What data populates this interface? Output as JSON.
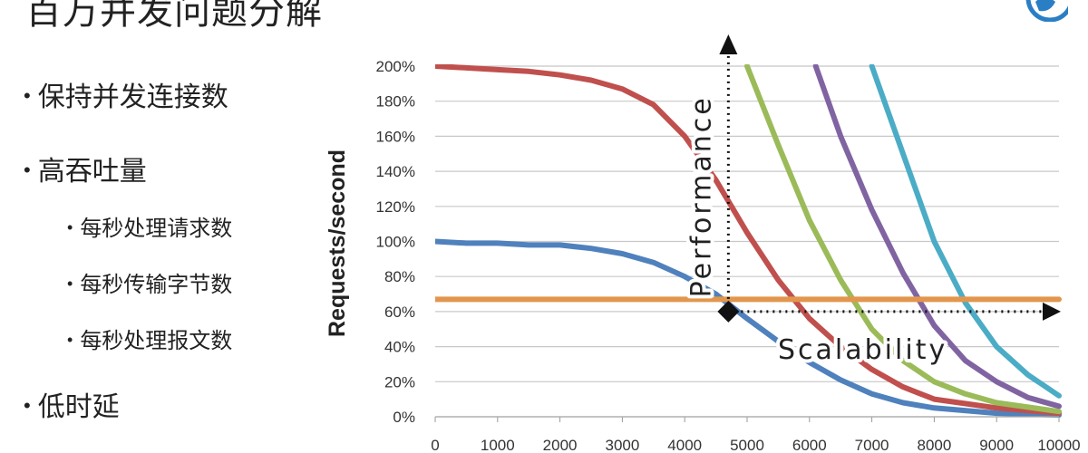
{
  "slide": {
    "title": "百万并发问题分解"
  },
  "bullets": [
    {
      "level": 1,
      "text": "保持并发连接数"
    },
    {
      "level": 1,
      "text": "高吞吐量"
    },
    {
      "level": 2,
      "text": "每秒处理请求数"
    },
    {
      "level": 2,
      "text": "每秒传输字节数"
    },
    {
      "level": 2,
      "text": "每秒处理报文数"
    },
    {
      "level": 1,
      "text": "低时延"
    }
  ],
  "chart_data": {
    "type": "line",
    "title": "",
    "xlabel": "",
    "ylabel": "Requests/second",
    "xlim": [
      0,
      10000
    ],
    "ylim": [
      0,
      200
    ],
    "x_ticks": [
      0,
      1000,
      2000,
      3000,
      4000,
      5000,
      6000,
      7000,
      8000,
      9000,
      10000
    ],
    "x_tick_labels": [
      "0",
      "1000",
      "2000",
      "3000",
      "4000",
      "5000",
      "6000",
      "7000",
      "8000",
      "9000",
      "10000"
    ],
    "y_ticks": [
      0,
      20,
      40,
      60,
      80,
      100,
      120,
      140,
      160,
      180,
      200
    ],
    "y_tick_labels": [
      "0%",
      "20%",
      "40%",
      "60%",
      "80%",
      "100%",
      "120%",
      "140%",
      "160%",
      "180%",
      "200%"
    ],
    "grid": "horizontal",
    "legend": "none",
    "series": [
      {
        "color": "#4f81bd",
        "points": [
          [
            0,
            100
          ],
          [
            500,
            99
          ],
          [
            1000,
            99
          ],
          [
            1500,
            98
          ],
          [
            2000,
            98
          ],
          [
            2500,
            96
          ],
          [
            3000,
            93
          ],
          [
            3500,
            88
          ],
          [
            4000,
            80
          ],
          [
            4500,
            70
          ],
          [
            5000,
            56
          ],
          [
            5500,
            43
          ],
          [
            6000,
            31
          ],
          [
            6500,
            21
          ],
          [
            7000,
            13
          ],
          [
            7500,
            8
          ],
          [
            8000,
            5
          ],
          [
            9000,
            2
          ],
          [
            10000,
            1
          ]
        ]
      },
      {
        "color": "#c0504d",
        "points": [
          [
            0,
            200
          ],
          [
            500,
            199
          ],
          [
            1000,
            198
          ],
          [
            1500,
            197
          ],
          [
            2000,
            195
          ],
          [
            2500,
            192
          ],
          [
            3000,
            187
          ],
          [
            3500,
            178
          ],
          [
            4000,
            160
          ],
          [
            4500,
            135
          ],
          [
            5000,
            105
          ],
          [
            5500,
            78
          ],
          [
            6000,
            56
          ],
          [
            6500,
            40
          ],
          [
            7000,
            27
          ],
          [
            7500,
            17
          ],
          [
            8000,
            10
          ],
          [
            9000,
            5
          ],
          [
            10000,
            2
          ]
        ]
      },
      {
        "color": "#9bbb59",
        "points": [
          [
            5000,
            200
          ],
          [
            5500,
            155
          ],
          [
            6000,
            112
          ],
          [
            6500,
            78
          ],
          [
            7000,
            50
          ],
          [
            7500,
            32
          ],
          [
            8000,
            20
          ],
          [
            8500,
            13
          ],
          [
            9000,
            8
          ],
          [
            10000,
            3
          ]
        ]
      },
      {
        "color": "#8064a2",
        "points": [
          [
            6100,
            200
          ],
          [
            6500,
            160
          ],
          [
            7000,
            118
          ],
          [
            7500,
            82
          ],
          [
            8000,
            52
          ],
          [
            8500,
            32
          ],
          [
            9000,
            20
          ],
          [
            9500,
            11
          ],
          [
            10000,
            6
          ]
        ]
      },
      {
        "color": "#4bacc6",
        "points": [
          [
            7000,
            200
          ],
          [
            7500,
            150
          ],
          [
            8000,
            100
          ],
          [
            8500,
            65
          ],
          [
            9000,
            40
          ],
          [
            9500,
            24
          ],
          [
            10000,
            12
          ]
        ]
      },
      {
        "color": "#e2964d",
        "points": [
          [
            0,
            67
          ],
          [
            4000,
            67
          ],
          [
            6000,
            67
          ],
          [
            8000,
            67
          ],
          [
            10000,
            67
          ]
        ]
      }
    ],
    "annotations": [
      {
        "text": "Performance",
        "direction": "vertical"
      },
      {
        "text": "Scalability",
        "direction": "horizontal"
      }
    ],
    "marker": {
      "x": 4700,
      "y": 60,
      "shape": "diamond"
    }
  }
}
